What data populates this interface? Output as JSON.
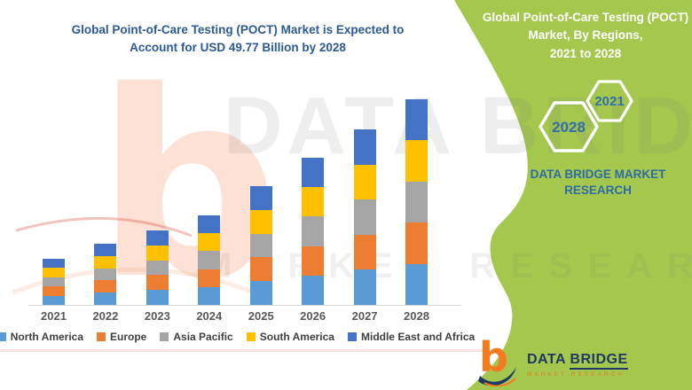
{
  "left_panel": {
    "title": "Global Point-of-Care Testing (POCT) Market is Expected to Account for USD 49.77 Billion by 2028",
    "title_lines": [
      "Global Point-of-Care Testing (POCT) Market is Expected to",
      "Account for USD 49.77 Billion by 2028"
    ]
  },
  "chart_data": {
    "type": "bar",
    "stacked": true,
    "title": "Global Point-of-Care Testing (POCT) Market is Expected to Account for USD 49.77 Billion by 2028",
    "unit": "USD Billion",
    "categories": [
      "2021",
      "2022",
      "2023",
      "2024",
      "2025",
      "2026",
      "2027",
      "2028"
    ],
    "series": [
      {
        "name": "North America",
        "color": "#5B9BD5",
        "values": [
          2.23,
          2.96,
          3.6,
          4.33,
          5.75,
          7.12,
          8.49,
          9.95
        ]
      },
      {
        "name": "Europe",
        "color": "#ED7D31",
        "values": [
          2.23,
          2.96,
          3.6,
          4.33,
          5.75,
          7.12,
          8.49,
          9.95
        ]
      },
      {
        "name": "Asia Pacific",
        "color": "#A5A5A5",
        "values": [
          2.23,
          2.96,
          3.6,
          4.33,
          5.75,
          7.12,
          8.49,
          9.95
        ]
      },
      {
        "name": "South America",
        "color": "#FFC000",
        "values": [
          2.23,
          2.96,
          3.6,
          4.33,
          5.75,
          7.12,
          8.49,
          9.96
        ]
      },
      {
        "name": "Middle East and Africa",
        "color": "#4472C4",
        "values": [
          2.23,
          2.96,
          3.6,
          4.33,
          5.75,
          7.12,
          8.49,
          9.96
        ]
      }
    ],
    "totals": [
      11.15,
      14.8,
      18.0,
      21.65,
      28.75,
      35.6,
      42.45,
      49.77
    ],
    "ylim": [
      0,
      50
    ],
    "grid": false,
    "legend_position": "bottom"
  },
  "right_panel": {
    "title": "Global Point-of-Care Testing (POCT) Market, By Regions, 2021 to 2028",
    "title_lines": [
      "Global Point-of-Care Testing (POCT)",
      "Market, By Regions,",
      "2021 to 2028"
    ],
    "hexagon_years": [
      "2028",
      "2021"
    ],
    "brand_lines": [
      "DATA BRIDGE MARKET",
      "RESEARCH"
    ],
    "colors": {
      "band_green": "#a4c84d",
      "year_blue": "#336fa8",
      "brand_blue": "#2e6ca6",
      "title_white": "#ffffff"
    }
  },
  "watermark": {
    "letter": "b",
    "line1": "DATA BRIDGE",
    "line2": "MARKET RESEARCH"
  },
  "logo": {
    "brand_first": "DATA ",
    "brand_second": "BRIDGE",
    "subtitle": "MARKET RESEARCH",
    "navy": "#1f3864",
    "orange": "#f47b20"
  }
}
